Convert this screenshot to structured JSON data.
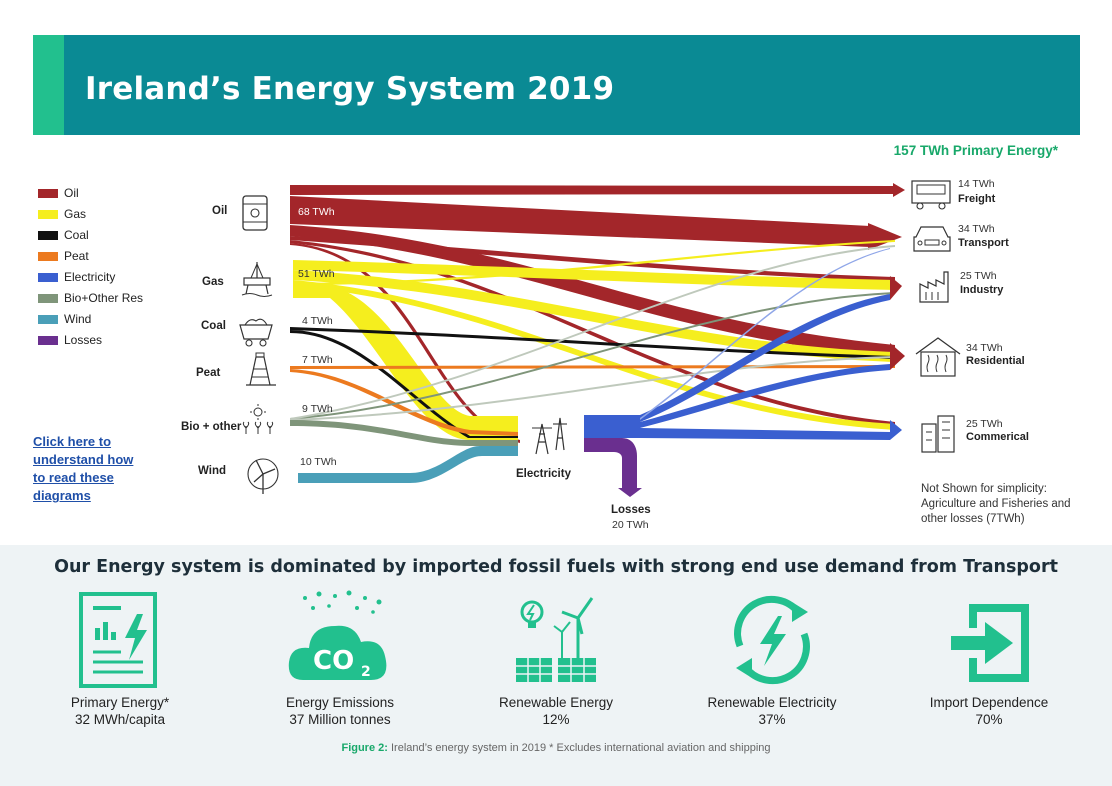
{
  "header": {
    "title": "Ireland’s Energy System 2019",
    "accent_color": "#22c08e",
    "band_color": "#0a8a94"
  },
  "primary_energy": "157 TWh Primary Energy*",
  "legend": [
    {
      "label": "Oil",
      "color": "#a3262a"
    },
    {
      "label": "Gas",
      "color": "#f5ee1e"
    },
    {
      "label": "Coal",
      "color": "#111111"
    },
    {
      "label": "Peat",
      "color": "#ec7a1f"
    },
    {
      "label": "Electricity",
      "color": "#3a5fd0"
    },
    {
      "label": "Bio+Other Res",
      "color": "#7f957a"
    },
    {
      "label": "Wind",
      "color": "#4a9fb8"
    },
    {
      "label": "Losses",
      "color": "#6a2f8f"
    }
  ],
  "howto_link": "Click here to understand how to read these diagrams",
  "sources": [
    {
      "name": "Oil",
      "value": "68 TWh",
      "icon": "oil-barrel-icon"
    },
    {
      "name": "Gas",
      "value": "51 TWh",
      "icon": "gas-rig-icon"
    },
    {
      "name": "Coal",
      "value": "4 TWh",
      "icon": "coal-cart-icon"
    },
    {
      "name": "Peat",
      "value": "7 TWh",
      "icon": "peat-mine-icon"
    },
    {
      "name": "Bio + other",
      "value": "9 TWh",
      "icon": "bio-plant-icon"
    },
    {
      "name": "Wind",
      "value": "10 TWh",
      "icon": "wind-turbine-icon"
    }
  ],
  "electricity_node": "Electricity",
  "losses": {
    "name": "Losses",
    "value": "20 TWh"
  },
  "destinations": [
    {
      "name": "Freight",
      "value": "14 TWh",
      "icon": "truck-icon"
    },
    {
      "name": "Transport",
      "value": "34 TWh",
      "icon": "car-icon"
    },
    {
      "name": "Industry",
      "value": "25 TWh",
      "icon": "factory-icon"
    },
    {
      "name": "Residential",
      "value": "34 TWh",
      "icon": "house-icon"
    },
    {
      "name": "Commerical",
      "value": "25 TWh",
      "icon": "office-icon"
    }
  ],
  "not_shown": "Not Shown for simplicity: Agriculture and Fisheries and other losses (7TWh)",
  "bottom": {
    "heading": "Our Energy system is dominated by imported fossil fuels with strong end use demand from Transport",
    "stats": [
      {
        "label": "Primary Energy*",
        "value": "32 MWh/capita",
        "icon": "energy-document-icon"
      },
      {
        "label": "Energy Emissions",
        "value": "37 Million tonnes",
        "icon": "co2-cloud-icon"
      },
      {
        "label": "Renewable Energy",
        "value": "12%",
        "icon": "renewables-icon"
      },
      {
        "label": "Renewable Electricity",
        "value": "37%",
        "icon": "renewable-electricity-icon"
      },
      {
        "label": "Import Dependence",
        "value": "70%",
        "icon": "import-arrow-icon"
      }
    ],
    "caption_lead": "Figure 2:",
    "caption_text": " Ireland’s energy system in 2019 * Excludes international aviation and shipping",
    "icon_color": "#22c08e"
  },
  "chart_data": {
    "type": "sankey",
    "unit": "TWh",
    "nodes": [
      "Oil",
      "Gas",
      "Coal",
      "Peat",
      "Bio + other",
      "Wind",
      "Electricity",
      "Losses",
      "Freight",
      "Transport",
      "Industry",
      "Residential",
      "Commerical"
    ],
    "node_values": {
      "Oil": 68,
      "Gas": 51,
      "Coal": 4,
      "Peat": 7,
      "Bio + other": 9,
      "Wind": 10,
      "Losses": 20,
      "Freight": 14,
      "Transport": 34,
      "Industry": 25,
      "Residential": 34,
      "Commerical": 25
    },
    "primary_energy_total": 157,
    "not_shown_total": 7
  }
}
